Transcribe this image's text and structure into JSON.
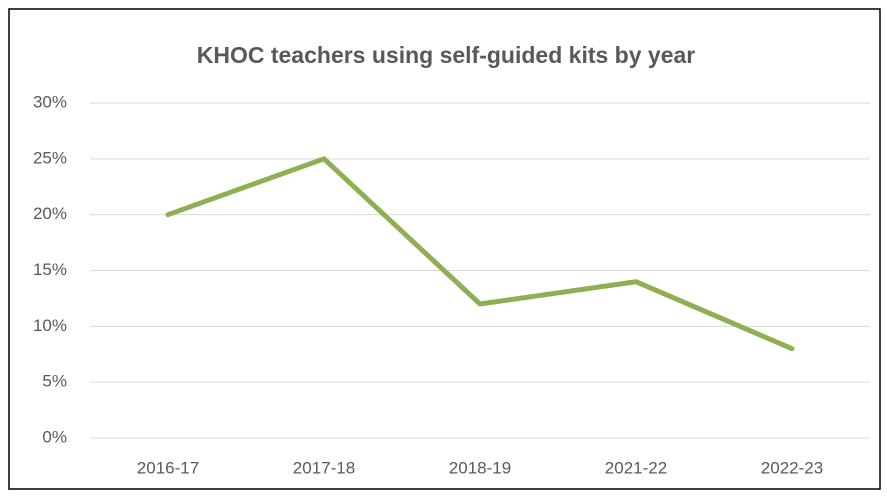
{
  "chart_data": {
    "type": "line",
    "title": "KHOC teachers using self-guided kits by year",
    "categories": [
      "2016-17",
      "2017-18",
      "2018-19",
      "2021-22",
      "2022-23"
    ],
    "series": [
      {
        "name": "KHOC teachers using self-guided kits",
        "color": "#8db054",
        "values": [
          20,
          25,
          12,
          14,
          8
        ]
      }
    ],
    "ylim": [
      0,
      30
    ],
    "yticks": [
      {
        "value": 0,
        "label": "0%"
      },
      {
        "value": 5,
        "label": "5%"
      },
      {
        "value": 10,
        "label": "10%"
      },
      {
        "value": 15,
        "label": "15%"
      },
      {
        "value": 20,
        "label": "20%"
      },
      {
        "value": 25,
        "label": "25%"
      },
      {
        "value": 30,
        "label": "30%"
      }
    ],
    "grid": true
  }
}
